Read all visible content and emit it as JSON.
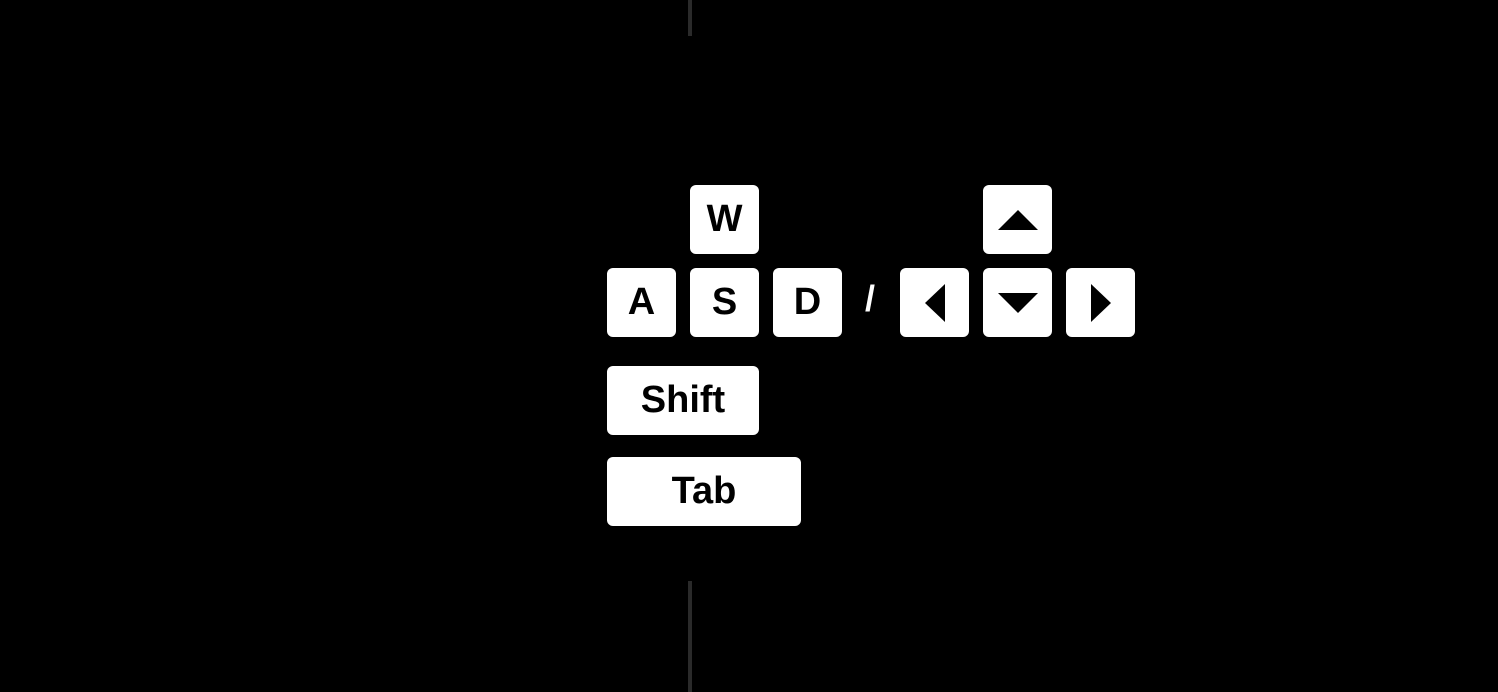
{
  "controls": {
    "keys": {
      "w": "W",
      "a": "A",
      "s": "S",
      "d": "D",
      "shift": "Shift",
      "tab": "Tab"
    },
    "separator": "/",
    "arrows": {
      "up": "arrow-up-icon",
      "left": "arrow-left-icon",
      "down": "arrow-down-icon",
      "right": "arrow-right-icon"
    }
  },
  "colors": {
    "background": "#000000",
    "key_face": "#ffffff",
    "key_text": "#000000",
    "divider": "#2a2a2a"
  }
}
